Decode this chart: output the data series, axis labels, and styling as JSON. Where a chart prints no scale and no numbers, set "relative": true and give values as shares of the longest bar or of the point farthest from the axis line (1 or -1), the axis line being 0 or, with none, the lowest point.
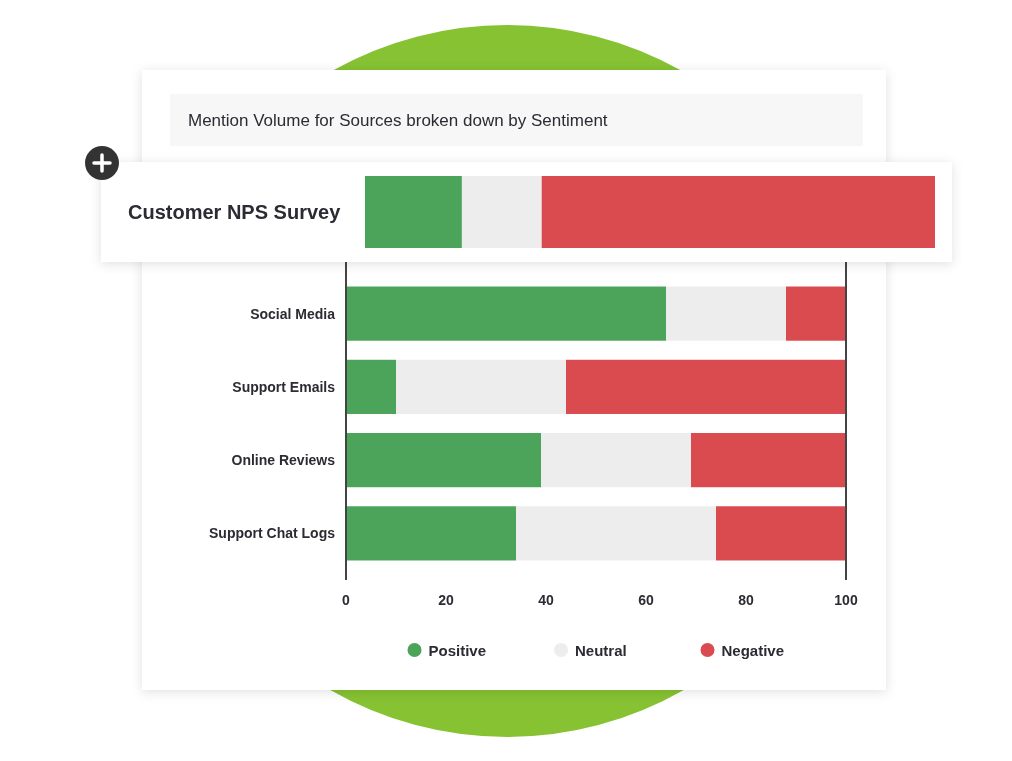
{
  "chart_data": [
    {
      "type": "bar",
      "title": "Mention Volume for Sources broken down by Sentiment",
      "orientation": "horizontal",
      "stacked": true,
      "categories": [
        "Social Media",
        "Support Emails",
        "Online Reviews",
        "Support Chat Logs"
      ],
      "series": [
        {
          "name": "Positive",
          "color": "#4ca35a",
          "values": [
            64,
            10,
            39,
            34
          ]
        },
        {
          "name": "Neutral",
          "color": "#ededed",
          "values": [
            24,
            34,
            30,
            40
          ]
        },
        {
          "name": "Negative",
          "color": "#d94b4e",
          "values": [
            12,
            56,
            31,
            26
          ]
        }
      ],
      "xlim": [
        0,
        100
      ],
      "xticks": [
        0,
        20,
        40,
        60,
        80,
        100
      ],
      "legend": "bottom"
    },
    {
      "type": "bar",
      "orientation": "horizontal",
      "stacked": true,
      "relative": true,
      "categories": [
        "Customer NPS Survey"
      ],
      "series": [
        {
          "color": "#4ca35a",
          "values": [
            0.17
          ]
        },
        {
          "color": "#ededed",
          "values": [
            0.14
          ]
        },
        {
          "color": "#d94b4e",
          "values": [
            0.69
          ]
        }
      ]
    }
  ]
}
